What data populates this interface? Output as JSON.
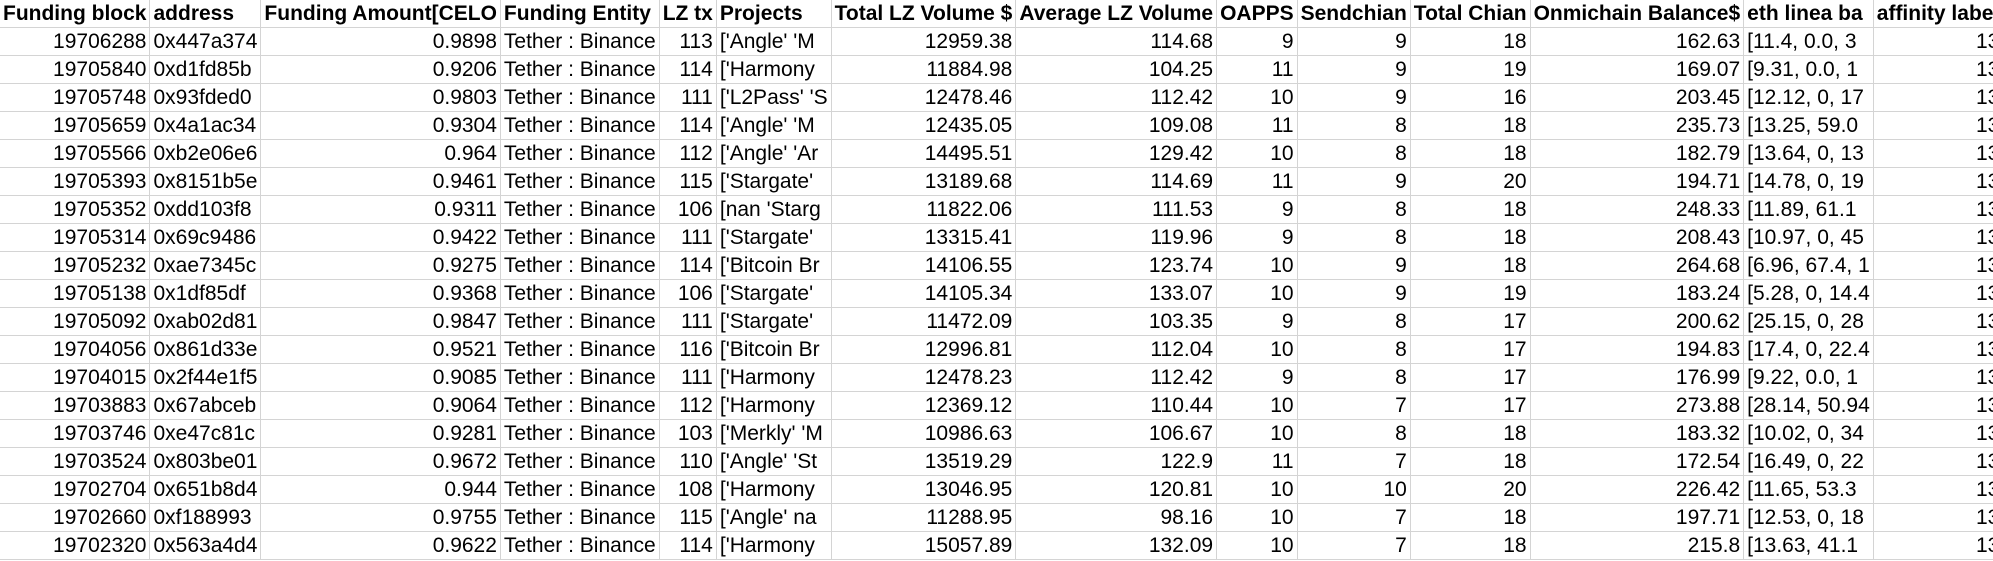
{
  "headers": [
    "Funding block",
    "address",
    "Funding Amount[CELO",
    "Funding Entity",
    "LZ tx",
    "Projects",
    "Total LZ Volume $",
    "Average LZ Volume",
    "OAPPS",
    "Sendchian",
    "Total Chian",
    "Onmichain Balance$",
    "eth linea ba",
    "affinity label"
  ],
  "rows": [
    [
      "19706288",
      "0x447a374",
      "0.9898",
      "Tether : Binance",
      "113",
      "['Angle' 'M",
      "12959.38",
      "114.68",
      "9",
      "9",
      "18",
      "162.63",
      "[11.4, 0.0, 3",
      "13"
    ],
    [
      "19705840",
      "0xd1fd85b",
      "0.9206",
      "Tether : Binance",
      "114",
      "['Harmony",
      "11884.98",
      "104.25",
      "11",
      "9",
      "19",
      "169.07",
      "[9.31, 0.0, 1",
      "13"
    ],
    [
      "19705748",
      "0x93fded0",
      "0.9803",
      "Tether : Binance",
      "111",
      "['L2Pass' 'S",
      "12478.46",
      "112.42",
      "10",
      "9",
      "16",
      "203.45",
      "[12.12, 0, 17",
      "13"
    ],
    [
      "19705659",
      "0x4a1ac34",
      "0.9304",
      "Tether : Binance",
      "114",
      "['Angle' 'M",
      "12435.05",
      "109.08",
      "11",
      "8",
      "18",
      "235.73",
      "[13.25, 59.0",
      "13"
    ],
    [
      "19705566",
      "0xb2e06e6",
      "0.964",
      "Tether : Binance",
      "112",
      "['Angle' 'Ar",
      "14495.51",
      "129.42",
      "10",
      "8",
      "18",
      "182.79",
      "[13.64, 0, 13",
      "13"
    ],
    [
      "19705393",
      "0x8151b5e",
      "0.9461",
      "Tether : Binance",
      "115",
      "['Stargate'",
      "13189.68",
      "114.69",
      "11",
      "9",
      "20",
      "194.71",
      "[14.78, 0, 19",
      "13"
    ],
    [
      "19705352",
      "0xdd103f8",
      "0.9311",
      "Tether : Binance",
      "106",
      "[nan 'Starg",
      "11822.06",
      "111.53",
      "9",
      "8",
      "18",
      "248.33",
      "[11.89, 61.1",
      "13"
    ],
    [
      "19705314",
      "0x69c9486",
      "0.9422",
      "Tether : Binance",
      "111",
      "['Stargate'",
      "13315.41",
      "119.96",
      "9",
      "8",
      "18",
      "208.43",
      "[10.97, 0, 45",
      "13"
    ],
    [
      "19705232",
      "0xae7345c",
      "0.9275",
      "Tether : Binance",
      "114",
      "['Bitcoin Br",
      "14106.55",
      "123.74",
      "10",
      "9",
      "18",
      "264.68",
      "[6.96, 67.4, 1",
      "13"
    ],
    [
      "19705138",
      "0x1df85df",
      "0.9368",
      "Tether : Binance",
      "106",
      "['Stargate'",
      "14105.34",
      "133.07",
      "10",
      "9",
      "19",
      "183.24",
      "[5.28, 0, 14.4",
      "13"
    ],
    [
      "19705092",
      "0xab02d81",
      "0.9847",
      "Tether : Binance",
      "111",
      "['Stargate'",
      "11472.09",
      "103.35",
      "9",
      "8",
      "17",
      "200.62",
      "[25.15, 0, 28",
      "13"
    ],
    [
      "19704056",
      "0x861d33e",
      "0.9521",
      "Tether : Binance",
      "116",
      "['Bitcoin Br",
      "12996.81",
      "112.04",
      "10",
      "8",
      "17",
      "194.83",
      "[17.4, 0, 22.4",
      "13"
    ],
    [
      "19704015",
      "0x2f44e1f5",
      "0.9085",
      "Tether : Binance",
      "111",
      "['Harmony",
      "12478.23",
      "112.42",
      "9",
      "8",
      "17",
      "176.99",
      "[9.22, 0.0, 1",
      "13"
    ],
    [
      "19703883",
      "0x67abceb",
      "0.9064",
      "Tether : Binance",
      "112",
      "['Harmony",
      "12369.12",
      "110.44",
      "10",
      "7",
      "17",
      "273.88",
      "[28.14, 50.94",
      "13"
    ],
    [
      "19703746",
      "0xe47c81c",
      "0.9281",
      "Tether : Binance",
      "103",
      "['Merkly' 'M",
      "10986.63",
      "106.67",
      "10",
      "8",
      "18",
      "183.32",
      "[10.02, 0, 34",
      "13"
    ],
    [
      "19703524",
      "0x803be01",
      "0.9672",
      "Tether : Binance",
      "110",
      "['Angle' 'St",
      "13519.29",
      "122.9",
      "11",
      "7",
      "18",
      "172.54",
      "[16.49, 0, 22",
      "13"
    ],
    [
      "19702704",
      "0x651b8d4",
      "0.944",
      "Tether : Binance",
      "108",
      "['Harmony",
      "13046.95",
      "120.81",
      "10",
      "10",
      "20",
      "226.42",
      "[11.65, 53.3",
      "13"
    ],
    [
      "19702660",
      "0xf188993",
      "0.9755",
      "Tether : Binance",
      "115",
      "['Angle' na",
      "11288.95",
      "98.16",
      "10",
      "7",
      "18",
      "197.71",
      "[12.53, 0, 18",
      "13"
    ],
    [
      "19702320",
      "0x563a4d4",
      "0.9622",
      "Tether : Binance",
      "114",
      "['Harmony",
      "15057.89",
      "132.09",
      "10",
      "7",
      "18",
      "215.8",
      "[13.63, 41.1",
      "13"
    ]
  ],
  "column_align": [
    "num",
    "txt",
    "num",
    "txt",
    "num",
    "txt",
    "num",
    "num",
    "num",
    "num",
    "num",
    "num",
    "txt",
    "num"
  ]
}
